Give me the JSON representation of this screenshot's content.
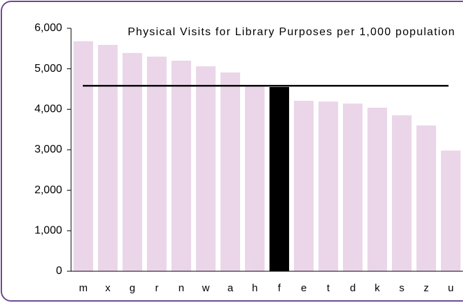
{
  "chart_data": {
    "type": "bar",
    "title": "Physical Visits for Library Purposes per 1,000 population",
    "categories": [
      "m",
      "x",
      "g",
      "r",
      "n",
      "w",
      "a",
      "h",
      "f",
      "e",
      "t",
      "d",
      "k",
      "s",
      "z",
      "u"
    ],
    "values": [
      5680,
      5590,
      5390,
      5300,
      5200,
      5060,
      4910,
      4590,
      4550,
      4210,
      4190,
      4140,
      4040,
      3850,
      3600,
      2980
    ],
    "colors": [
      "#ead5e9",
      "#ead5e9",
      "#ead5e9",
      "#ead5e9",
      "#ead5e9",
      "#ead5e9",
      "#ead5e9",
      "#ead5e9",
      "#000000",
      "#ead5e9",
      "#ead5e9",
      "#ead5e9",
      "#ead5e9",
      "#ead5e9",
      "#ead5e9",
      "#ead5e9"
    ],
    "reference_line": 4580,
    "ylim": [
      0,
      6000
    ],
    "yticks": [
      0,
      {
        "value": 1000,
        "label": "1,000"
      },
      {
        "value": 2000,
        "label": "2,000"
      },
      {
        "value": 3000,
        "label": "3,000"
      },
      {
        "value": 4000,
        "label": "4,000"
      },
      {
        "value": 5000,
        "label": "5,000"
      },
      {
        "value": 6000,
        "label": "6,000"
      }
    ]
  }
}
